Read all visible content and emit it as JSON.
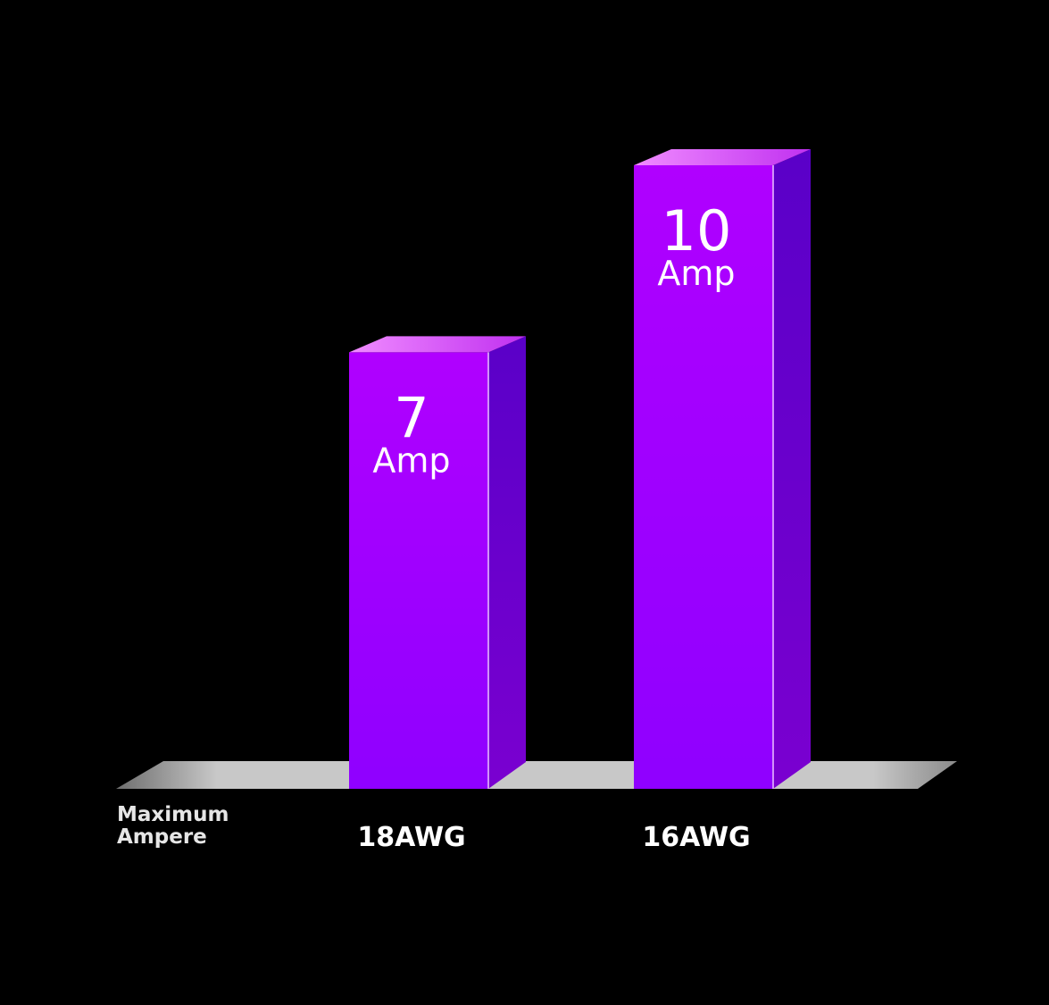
{
  "chart_data": {
    "type": "bar",
    "categories": [
      "18AWG",
      "16AWG"
    ],
    "values": [
      7,
      10
    ],
    "value_unit": "Amp",
    "row_label_lines": [
      "Maximum",
      "Ampere"
    ],
    "ylim": [
      0,
      10
    ],
    "grid": false,
    "legend": "none",
    "style": "3d",
    "colors": {
      "background": "#000000",
      "bar_front_top": "#b000ff",
      "bar_front_bottom": "#8f00ff",
      "bar_side_top": "#5a00c8",
      "bar_side_bottom": "#7a00d0",
      "bar_top_light": "#f08cff",
      "bar_top_dark": "#c030f0",
      "floor": "#c8c8c8",
      "label_text": "#ffffff",
      "row_label_text": "#e6e6e6"
    }
  }
}
